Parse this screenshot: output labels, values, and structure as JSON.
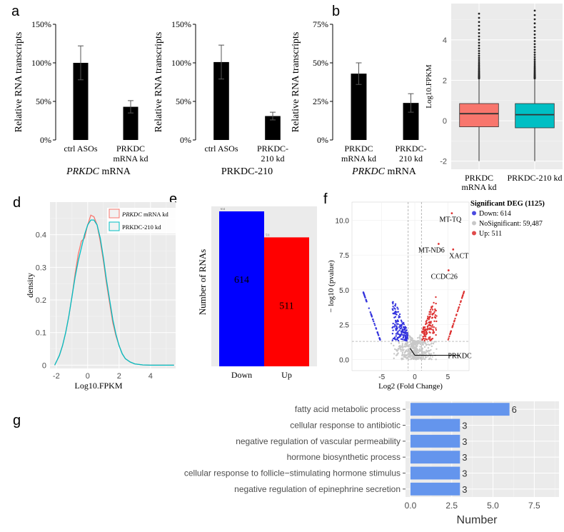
{
  "chart_data": [
    {
      "panel": "a",
      "type": "bar",
      "xlabel": "PRKDC mRNA",
      "ylabel": "Relative RNA transcripts",
      "ylim": [
        0,
        150
      ],
      "yticks": [
        "0%",
        "50%",
        "100%",
        "150%"
      ],
      "categories": [
        [
          "ctrl ASOs"
        ],
        [
          "PRKDC",
          "mRNA kd"
        ]
      ],
      "values": [
        100,
        43
      ],
      "errors": [
        22,
        8
      ]
    },
    {
      "panel": "a2",
      "type": "bar",
      "xlabel": "PRKDC-210",
      "ylabel": "Relative RNA transcripts",
      "ylim": [
        0,
        150
      ],
      "yticks": [
        "0%",
        "50%",
        "100%",
        "150%"
      ],
      "categories": [
        [
          "ctrl ASOs"
        ],
        [
          "PRKDC-",
          "210 kd"
        ]
      ],
      "values": [
        101,
        31
      ],
      "errors": [
        22,
        5
      ]
    },
    {
      "panel": "b",
      "type": "bar",
      "xlabel": "PRKDC mRNA",
      "ylabel": "Relative RNA transcripts",
      "ylim": [
        0,
        75
      ],
      "yticks": [
        "0%",
        "25%",
        "50%",
        "75%"
      ],
      "categories": [
        [
          "PRKDC",
          "mRNA kd"
        ],
        [
          "PRKDC-",
          "210 kd"
        ]
      ],
      "values": [
        43,
        24
      ],
      "errors": [
        7,
        6
      ]
    },
    {
      "panel": "c",
      "type": "boxplot",
      "ylabel": "Log10.FPKM",
      "ylim": [
        -2.4,
        5.8
      ],
      "yticks": [
        "-2",
        "0",
        "2",
        "4"
      ],
      "categories": [
        [
          "PRKDC",
          "mRNA kd"
        ],
        [
          "PRKDC-210 kd"
        ]
      ],
      "boxes": [
        {
          "min": -2,
          "q1": -0.3,
          "median": 0.35,
          "q3": 0.85,
          "upper": 2.1,
          "outlier_max": 5.3,
          "color": "#F8766D"
        },
        {
          "min": -2,
          "q1": -0.35,
          "median": 0.3,
          "q3": 0.85,
          "upper": 2.1,
          "outlier_max": 5.45,
          "color": "#00BFC4"
        }
      ]
    },
    {
      "panel": "d",
      "type": "line",
      "xlabel": "Log10.FPKM",
      "ylabel": "density",
      "xlim": [
        -2.4,
        5.6
      ],
      "ylim": [
        -0.01,
        0.5
      ],
      "xticks": [
        "-2",
        "0",
        "2",
        "4"
      ],
      "yticks": [
        "0",
        "0.1",
        "0.2",
        "0.3",
        "0.4"
      ],
      "series": [
        {
          "name": "PRKDC mRNA kd",
          "color": "#F8766D",
          "x": [
            -2.1,
            -2,
            -1.8,
            -1.6,
            -1.4,
            -1.2,
            -1,
            -0.8,
            -0.6,
            -0.4,
            -0.2,
            0,
            0.2,
            0.4,
            0.6,
            0.8,
            1,
            1.2,
            1.4,
            1.6,
            1.8,
            2,
            2.2,
            2.4,
            2.7,
            3,
            3.5,
            4,
            5.5
          ],
          "y": [
            0,
            0.01,
            0.03,
            0.06,
            0.1,
            0.15,
            0.21,
            0.28,
            0.34,
            0.38,
            0.39,
            0.43,
            0.46,
            0.455,
            0.43,
            0.38,
            0.32,
            0.25,
            0.19,
            0.13,
            0.09,
            0.06,
            0.035,
            0.02,
            0.01,
            0.004,
            0.001,
            0,
            0
          ]
        },
        {
          "name": "PRKDC-210 kd",
          "color": "#00BFC4",
          "x": [
            -2.1,
            -2,
            -1.8,
            -1.6,
            -1.4,
            -1.2,
            -1,
            -0.8,
            -0.6,
            -0.4,
            -0.2,
            0,
            0.2,
            0.4,
            0.6,
            0.8,
            1,
            1.2,
            1.4,
            1.6,
            1.8,
            2,
            2.2,
            2.4,
            2.7,
            3,
            3.5,
            4,
            5.5
          ],
          "y": [
            0,
            0.01,
            0.03,
            0.06,
            0.1,
            0.15,
            0.21,
            0.27,
            0.32,
            0.36,
            0.4,
            0.43,
            0.445,
            0.445,
            0.43,
            0.39,
            0.33,
            0.26,
            0.2,
            0.14,
            0.095,
            0.06,
            0.035,
            0.02,
            0.01,
            0.004,
            0.001,
            0,
            0
          ]
        }
      ]
    },
    {
      "panel": "e",
      "type": "bar",
      "ylabel": "Number of RNAs",
      "categories": [
        "Down",
        "Up"
      ],
      "values": [
        614,
        511
      ],
      "colors": [
        "#0000FF",
        "#FF0000"
      ],
      "top_labels": [
        "614",
        "511"
      ],
      "ylim": [
        0,
        614
      ]
    },
    {
      "panel": "f",
      "type": "scatter",
      "xlabel": "Log2 (Fold Change)",
      "ylabel": "− log10 (pvalue)",
      "xlim": [
        -9.5,
        8.2
      ],
      "ylim": [
        -0.8,
        11.3
      ],
      "xticks": [
        "-5",
        "0",
        "5"
      ],
      "yticks": [
        "0.0",
        "2.5",
        "5.0",
        "7.5",
        "10.0"
      ],
      "legend_title": "Significant DEG (1125)",
      "legend": [
        {
          "label": "Down: 614",
          "color": "#4A4AE0"
        },
        {
          "label": "NoSignificant: 59,487",
          "color": "#C8C8C8"
        },
        {
          "label": "Up: 511",
          "color": "#E04A4A"
        }
      ],
      "annotations": [
        {
          "label": "MT-TQ",
          "x": 5.6,
          "y": 10.5
        },
        {
          "label": "MT-ND6",
          "x": 3.6,
          "y": 8.3
        },
        {
          "label": "XACT",
          "x": 5.8,
          "y": 7.9
        },
        {
          "label": "CCDC26",
          "x": 5.1,
          "y": 6.4
        },
        {
          "label": "PRKDC",
          "x": -0.6,
          "y": 0.3
        }
      ]
    },
    {
      "panel": "g",
      "type": "bar",
      "orientation": "horizontal",
      "xlabel": "Number",
      "xlim": [
        -0.3,
        9
      ],
      "xticks": [
        "0.0",
        "2.5",
        "5.0",
        "7.5"
      ],
      "categories": [
        "fatty acid metabolic process",
        "cellular response to antibiotic",
        "negative regulation of vascular permeability",
        "hormone biosynthetic process",
        "cellular response to follicle−stimulating hormone stimulus",
        "negative regulation of epinephrine secretion"
      ],
      "values": [
        6,
        3,
        3,
        3,
        3,
        3
      ],
      "color": "#6495ED"
    }
  ],
  "panel_letters": [
    "a",
    "b",
    "c",
    "d",
    "e",
    "f",
    "g"
  ]
}
